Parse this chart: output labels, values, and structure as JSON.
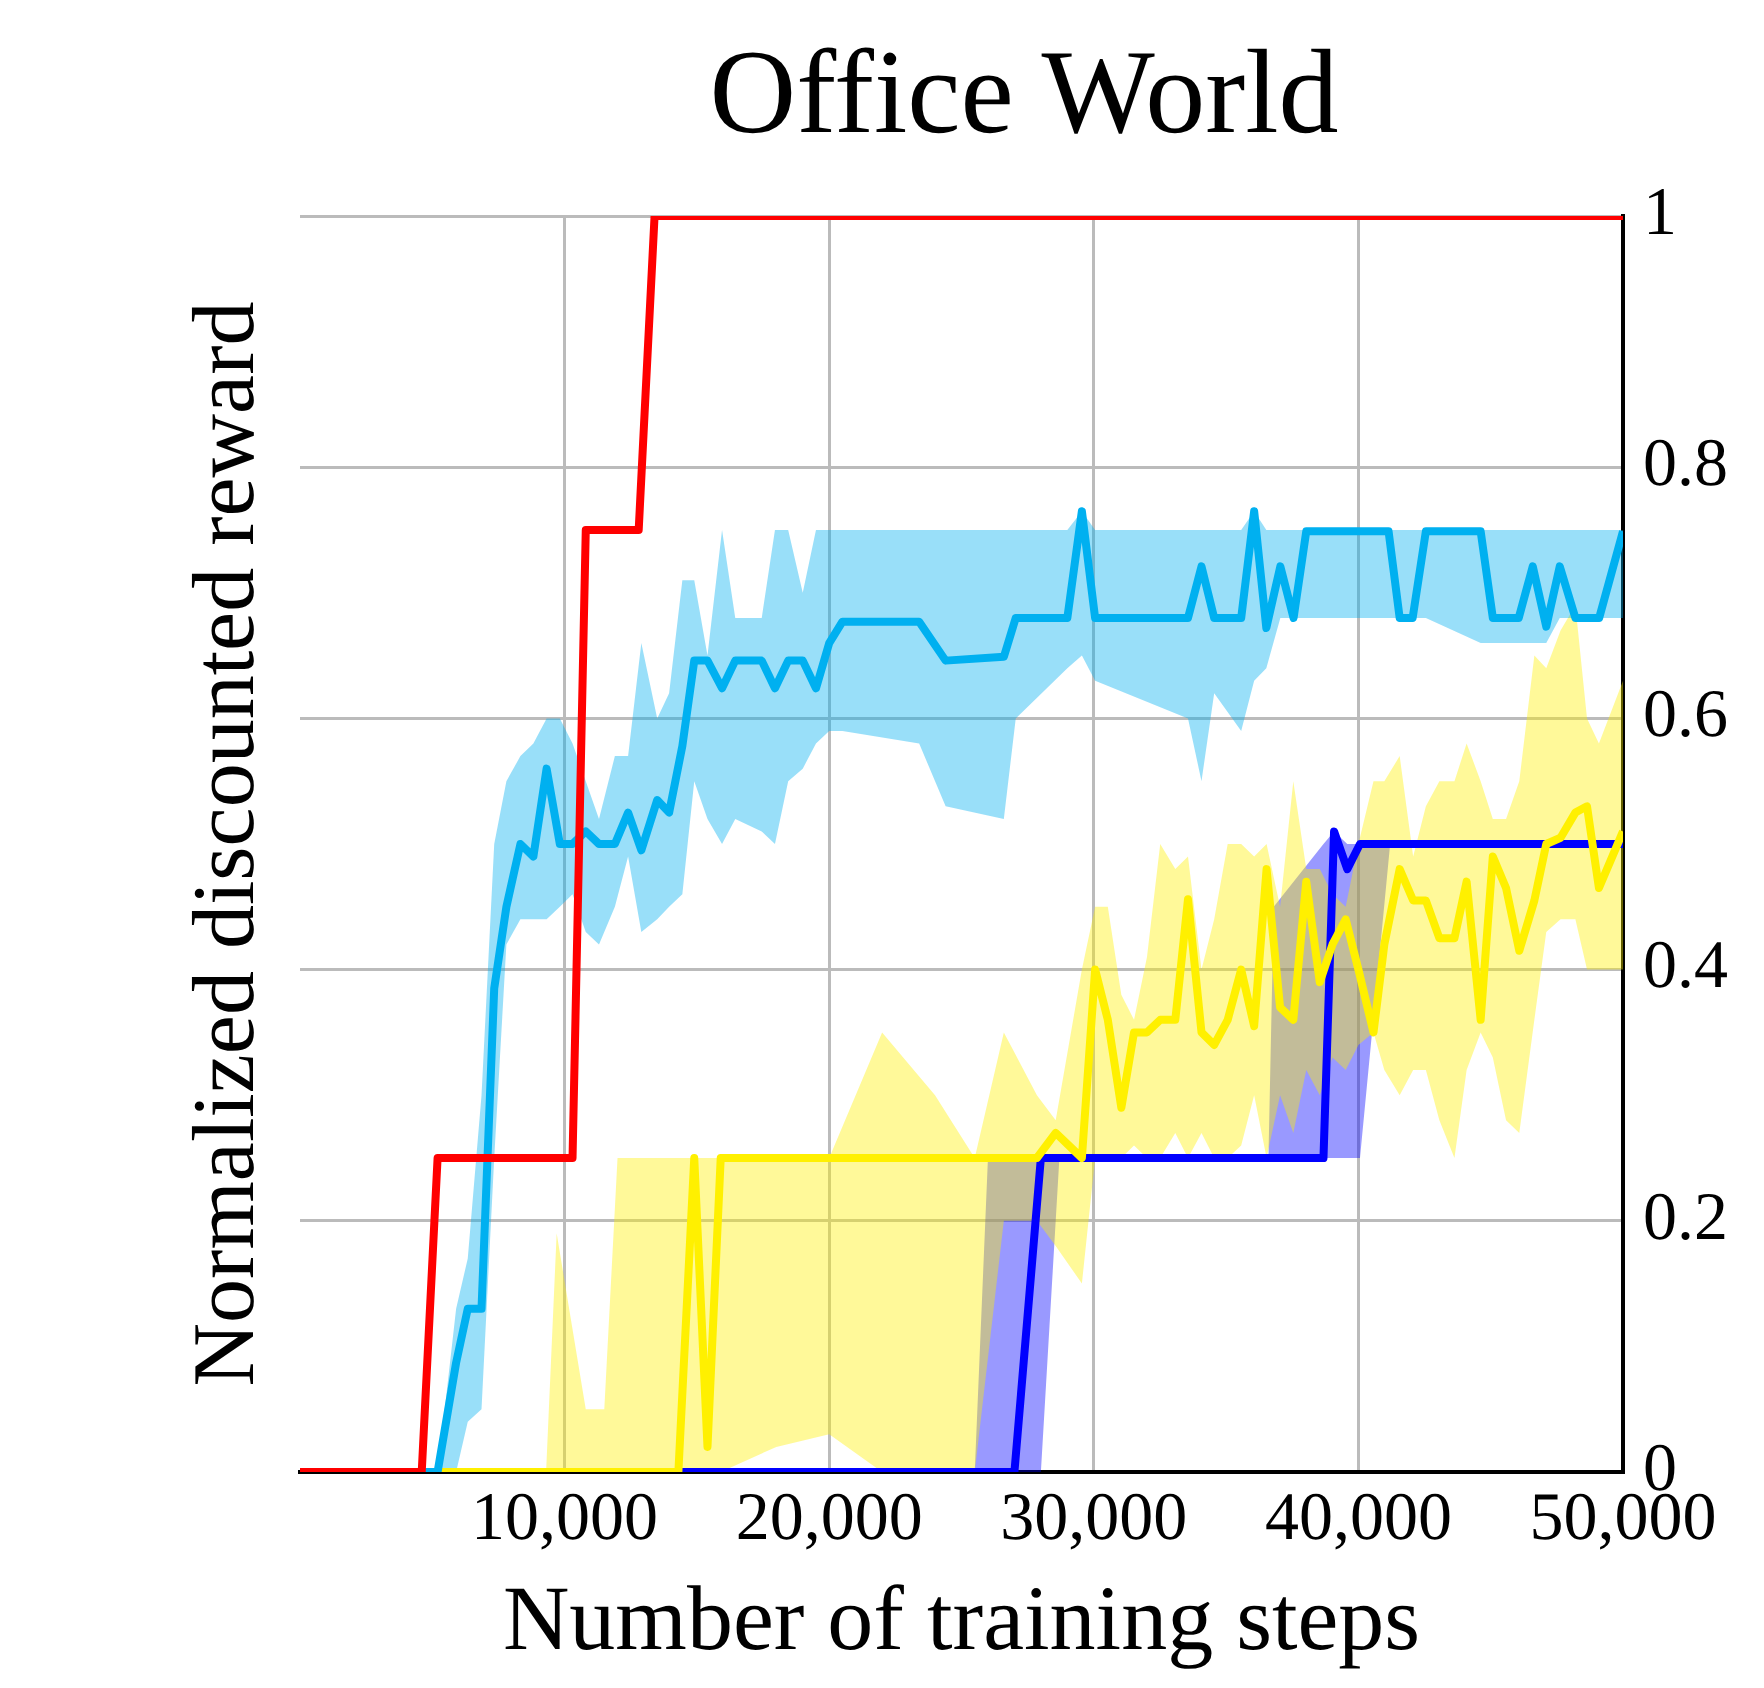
{
  "chart_data": {
    "type": "line",
    "title": "Office World",
    "xlabel": "Number of training steps",
    "ylabel": "Normalized discounted reward",
    "xlim": [
      0,
      50000
    ],
    "xticks": [
      {
        "value": 10000,
        "label": "10,000"
      },
      {
        "value": 20000,
        "label": "20,000"
      },
      {
        "value": 30000,
        "label": "30,000"
      },
      {
        "value": 40000,
        "label": "40,000"
      },
      {
        "value": 50000,
        "label": "50,000"
      }
    ],
    "ylim": [
      0,
      1
    ],
    "yticks": [
      0,
      0.2,
      0.4,
      0.6,
      0.8,
      1
    ],
    "grid": true,
    "legend": false,
    "marker": "none",
    "line_style": "solid",
    "series": [
      {
        "color": "#ff0000",
        "x": [
          0,
          4600,
          5200,
          10300,
          10800,
          12800,
          13400,
          50000
        ],
        "values": [
          0,
          0,
          0.25,
          0.25,
          0.75,
          0.75,
          1,
          1
        ]
      },
      {
        "color": "#00b0f0",
        "x": [
          0,
          5200,
          5900,
          6340,
          6860,
          7340,
          7800,
          8330,
          8820,
          9320,
          9820,
          10300,
          10800,
          11300,
          11900,
          12400,
          12900,
          13500,
          13950,
          14450,
          14900,
          15400,
          15950,
          16450,
          17450,
          17950,
          18450,
          19000,
          19500,
          20000,
          20500,
          23400,
          24400,
          26600,
          27050,
          29000,
          29550,
          30050,
          33560,
          34070,
          34550,
          35570,
          36060,
          36520,
          37050,
          37550,
          38030,
          41140,
          41560,
          42050,
          42550,
          44620,
          45080,
          46060,
          46590,
          47100,
          47610,
          48200,
          49100,
          50000
        ],
        "values": [
          0,
          0,
          0.087,
          0.13,
          0.13,
          0.385,
          0.45,
          0.5,
          0.49,
          0.56,
          0.5,
          0.5,
          0.51,
          0.5,
          0.5,
          0.525,
          0.495,
          0.535,
          0.525,
          0.578,
          0.646,
          0.646,
          0.624,
          0.646,
          0.646,
          0.624,
          0.646,
          0.646,
          0.624,
          0.66,
          0.677,
          0.677,
          0.646,
          0.649,
          0.68,
          0.68,
          0.765,
          0.68,
          0.68,
          0.721,
          0.68,
          0.68,
          0.765,
          0.672,
          0.721,
          0.68,
          0.749,
          0.749,
          0.68,
          0.68,
          0.749,
          0.749,
          0.68,
          0.68,
          0.721,
          0.673,
          0.721,
          0.68,
          0.68,
          0.749
        ],
        "lower": [
          0,
          0,
          0,
          0.04,
          0.05,
          0.25,
          0.42,
          0.44,
          0.44,
          0.44,
          0.45,
          0.46,
          0.43,
          0.42,
          0.45,
          0.49,
          0.43,
          0.44,
          0.45,
          0.46,
          0.55,
          0.52,
          0.5,
          0.52,
          0.51,
          0.5,
          0.55,
          0.56,
          0.58,
          0.59,
          0.59,
          0.58,
          0.53,
          0.52,
          0.6,
          0.64,
          0.65,
          0.63,
          0.6,
          0.55,
          0.62,
          0.59,
          0.63,
          0.64,
          0.68,
          0.68,
          0.68,
          0.68,
          0.68,
          0.68,
          0.68,
          0.66,
          0.66,
          0.66,
          0.66,
          0.66,
          0.68,
          0.68,
          0.68,
          0.68
        ],
        "upper": [
          0,
          0,
          0.13,
          0.17,
          0.3,
          0.5,
          0.55,
          0.57,
          0.58,
          0.6,
          0.6,
          0.58,
          0.55,
          0.52,
          0.57,
          0.57,
          0.66,
          0.6,
          0.62,
          0.71,
          0.71,
          0.65,
          0.75,
          0.68,
          0.68,
          0.75,
          0.75,
          0.7,
          0.75,
          0.75,
          0.75,
          0.75,
          0.75,
          0.75,
          0.75,
          0.75,
          0.765,
          0.75,
          0.75,
          0.75,
          0.75,
          0.75,
          0.765,
          0.75,
          0.75,
          0.75,
          0.75,
          0.75,
          0.75,
          0.75,
          0.75,
          0.75,
          0.75,
          0.75,
          0.75,
          0.75,
          0.75,
          0.75,
          0.75,
          0.75
        ]
      },
      {
        "color": "#fff000",
        "x": [
          0,
          9300,
          9700,
          10800,
          11500,
          12000,
          14300,
          14900,
          15400,
          15900,
          18000,
          20000,
          22000,
          24000,
          25500,
          26600,
          27850,
          28560,
          29550,
          30050,
          30530,
          31040,
          31520,
          32010,
          32510,
          33080,
          33560,
          34070,
          34550,
          35060,
          35570,
          36060,
          36530,
          37040,
          37540,
          38030,
          38540,
          39020,
          39520,
          40000,
          40570,
          40980,
          41560,
          42070,
          42550,
          43060,
          43630,
          44090,
          44620,
          45080,
          45580,
          46080,
          46650,
          47100,
          47640,
          48200,
          48640,
          49090,
          50000
        ],
        "values": [
          0,
          0,
          0,
          0,
          0,
          0,
          0,
          0.25,
          0.02,
          0.25,
          0.25,
          0.25,
          0.25,
          0.25,
          0.25,
          0.25,
          0.25,
          0.27,
          0.25,
          0.4,
          0.36,
          0.29,
          0.35,
          0.35,
          0.36,
          0.36,
          0.456,
          0.35,
          0.34,
          0.36,
          0.4,
          0.355,
          0.48,
          0.37,
          0.36,
          0.47,
          0.39,
          0.42,
          0.44,
          0.4,
          0.35,
          0.42,
          0.48,
          0.455,
          0.455,
          0.425,
          0.425,
          0.47,
          0.36,
          0.49,
          0.465,
          0.415,
          0.455,
          0.5,
          0.505,
          0.525,
          0.53,
          0.465,
          0.51
        ],
        "lower": [
          0,
          0,
          0,
          0,
          0,
          0,
          0,
          0,
          0,
          0,
          0.02,
          0.03,
          0,
          0,
          0,
          0.2,
          0.2,
          0.18,
          0.15,
          0.25,
          0.25,
          0.25,
          0.26,
          0.25,
          0.25,
          0.27,
          0.25,
          0.27,
          0.25,
          0.25,
          0.26,
          0.3,
          0.25,
          0.3,
          0.27,
          0.32,
          0.3,
          0.33,
          0.32,
          0.34,
          0.35,
          0.32,
          0.3,
          0.32,
          0.32,
          0.28,
          0.25,
          0.32,
          0.35,
          0.33,
          0.28,
          0.27,
          0.36,
          0.43,
          0.44,
          0.44,
          0.4,
          0.4,
          0.4
        ],
        "upper": [
          0,
          0,
          0.19,
          0.05,
          0.05,
          0.25,
          0.25,
          0.25,
          0.25,
          0.25,
          0.25,
          0.25,
          0.35,
          0.3,
          0.25,
          0.35,
          0.3,
          0.28,
          0.4,
          0.45,
          0.45,
          0.38,
          0.36,
          0.41,
          0.5,
          0.48,
          0.49,
          0.4,
          0.44,
          0.5,
          0.5,
          0.49,
          0.5,
          0.45,
          0.55,
          0.48,
          0.48,
          0.46,
          0.45,
          0.5,
          0.55,
          0.55,
          0.57,
          0.49,
          0.53,
          0.55,
          0.55,
          0.58,
          0.55,
          0.52,
          0.52,
          0.55,
          0.65,
          0.64,
          0.67,
          0.69,
          0.6,
          0.58,
          0.63
        ]
      },
      {
        "color": "#0000ff",
        "x": [
          0,
          25500,
          26000,
          27000,
          28000,
          28700,
          36600,
          36800,
          38680,
          39080,
          39580,
          40060,
          41200,
          50000
        ],
        "values": [
          0,
          0,
          0,
          0,
          0.25,
          0.25,
          0.25,
          0.25,
          0.25,
          0.51,
          0.48,
          0.5,
          0.5,
          0.5
        ],
        "lower": [
          0,
          0,
          0,
          0,
          0,
          0.25,
          0.25,
          0.25,
          0.25,
          0.25,
          0.25,
          0.25,
          0.5,
          0.5
        ],
        "upper": [
          0,
          0,
          0.25,
          0.25,
          0.25,
          0.25,
          0.25,
          0.45,
          0.5,
          0.51,
          0.5,
          0.5,
          0.5,
          0.5
        ]
      }
    ]
  }
}
